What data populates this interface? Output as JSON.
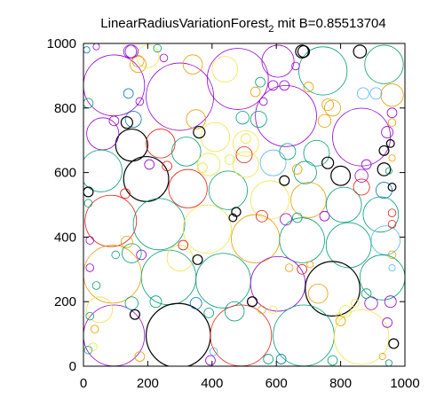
{
  "chart_data": {
    "type": "scatter",
    "title": "LinearRadiusVariationForest",
    "title_subscript": "2",
    "title_suffix": " mit B=0.85513704",
    "xlabel": "",
    "ylabel": "",
    "xlim": [
      0,
      1000
    ],
    "ylim": [
      0,
      1000
    ],
    "xticks": [
      "0",
      "200",
      "400",
      "600",
      "800",
      "1000"
    ],
    "yticks": [
      "0",
      "200",
      "400",
      "600",
      "800",
      "1000"
    ],
    "grid": false,
    "legend": "none",
    "colors": {
      "purple": "#9400d3",
      "teal": "#009e73",
      "blue": "#56b4e9",
      "orange": "#e69f00",
      "yellow": "#f0e442",
      "darkblue": "#0072b2",
      "red": "#e51e10",
      "black": "#000000"
    },
    "circles": [
      {
        "x": 95,
        "y": 870,
        "r": 95,
        "color": "purple"
      },
      {
        "x": 300,
        "y": 835,
        "r": 105,
        "color": "purple"
      },
      {
        "x": 480,
        "y": 890,
        "r": 95,
        "color": "purple"
      },
      {
        "x": 630,
        "y": 775,
        "r": 95,
        "color": "purple"
      },
      {
        "x": 745,
        "y": 915,
        "r": 75,
        "color": "teal"
      },
      {
        "x": 865,
        "y": 710,
        "r": 90,
        "color": "purple"
      },
      {
        "x": 935,
        "y": 935,
        "r": 60,
        "color": "teal"
      },
      {
        "x": 605,
        "y": 945,
        "r": 50,
        "color": "purple"
      },
      {
        "x": 150,
        "y": 685,
        "r": 50,
        "color": "black"
      },
      {
        "x": 60,
        "y": 720,
        "r": 50,
        "color": "purple"
      },
      {
        "x": 240,
        "y": 690,
        "r": 45,
        "color": "red"
      },
      {
        "x": 320,
        "y": 665,
        "r": 45,
        "color": "teal"
      },
      {
        "x": 55,
        "y": 605,
        "r": 65,
        "color": "teal"
      },
      {
        "x": 195,
        "y": 580,
        "r": 70,
        "color": "black"
      },
      {
        "x": 325,
        "y": 550,
        "r": 60,
        "color": "red"
      },
      {
        "x": 450,
        "y": 545,
        "r": 60,
        "color": "teal"
      },
      {
        "x": 580,
        "y": 515,
        "r": 60,
        "color": "yellow"
      },
      {
        "x": 700,
        "y": 515,
        "r": 55,
        "color": "orange"
      },
      {
        "x": 810,
        "y": 500,
        "r": 55,
        "color": "teal"
      },
      {
        "x": 925,
        "y": 470,
        "r": 55,
        "color": "teal"
      },
      {
        "x": 85,
        "y": 450,
        "r": 80,
        "color": "red"
      },
      {
        "x": 235,
        "y": 440,
        "r": 80,
        "color": "teal"
      },
      {
        "x": 385,
        "y": 425,
        "r": 75,
        "color": "yellow"
      },
      {
        "x": 535,
        "y": 395,
        "r": 75,
        "color": "orange"
      },
      {
        "x": 680,
        "y": 390,
        "r": 70,
        "color": "teal"
      },
      {
        "x": 825,
        "y": 375,
        "r": 70,
        "color": "teal"
      },
      {
        "x": 940,
        "y": 390,
        "r": 45,
        "color": "blue"
      },
      {
        "x": 90,
        "y": 285,
        "r": 90,
        "color": "orange"
      },
      {
        "x": 265,
        "y": 275,
        "r": 85,
        "color": "teal"
      },
      {
        "x": 435,
        "y": 265,
        "r": 85,
        "color": "teal"
      },
      {
        "x": 605,
        "y": 255,
        "r": 85,
        "color": "purple"
      },
      {
        "x": 775,
        "y": 240,
        "r": 85,
        "color": "black"
      },
      {
        "x": 930,
        "y": 275,
        "r": 70,
        "color": "teal"
      },
      {
        "x": 95,
        "y": 95,
        "r": 95,
        "color": "purple"
      },
      {
        "x": 295,
        "y": 95,
        "r": 100,
        "color": "black"
      },
      {
        "x": 490,
        "y": 95,
        "r": 95,
        "color": "red"
      },
      {
        "x": 685,
        "y": 95,
        "r": 95,
        "color": "teal"
      },
      {
        "x": 865,
        "y": 90,
        "r": 85,
        "color": "yellow"
      },
      {
        "x": 410,
        "y": 710,
        "r": 45,
        "color": "yellow"
      },
      {
        "x": 505,
        "y": 690,
        "r": 40,
        "color": "yellow"
      },
      {
        "x": 725,
        "y": 660,
        "r": 40,
        "color": "teal"
      },
      {
        "x": 590,
        "y": 630,
        "r": 40,
        "color": "blue"
      },
      {
        "x": 690,
        "y": 600,
        "r": 35,
        "color": "teal"
      },
      {
        "x": 390,
        "y": 625,
        "r": 35,
        "color": "yellow"
      },
      {
        "x": 505,
        "y": 625,
        "r": 40,
        "color": "yellow"
      },
      {
        "x": 960,
        "y": 840,
        "r": 35,
        "color": "orange"
      },
      {
        "x": 440,
        "y": 920,
        "r": 40,
        "color": "yellow"
      },
      {
        "x": 200,
        "y": 960,
        "r": 35,
        "color": "yellow"
      },
      {
        "x": 50,
        "y": 175,
        "r": 40,
        "color": "yellow"
      },
      {
        "x": 300,
        "y": 335,
        "r": 40,
        "color": "yellow"
      },
      {
        "x": 150,
        "y": 350,
        "r": 30,
        "color": "teal"
      },
      {
        "x": 350,
        "y": 765,
        "r": 30,
        "color": "orange"
      },
      {
        "x": 730,
        "y": 225,
        "r": 30,
        "color": "orange"
      },
      {
        "x": 470,
        "y": 170,
        "r": 30,
        "color": "teal"
      },
      {
        "x": 340,
        "y": 935,
        "r": 30,
        "color": "orange"
      },
      {
        "x": 935,
        "y": 545,
        "r": 25,
        "color": "darkblue"
      },
      {
        "x": 170,
        "y": 935,
        "r": 25,
        "color": "orange"
      },
      {
        "x": 775,
        "y": 800,
        "r": 25,
        "color": "orange"
      },
      {
        "x": 155,
        "y": 765,
        "r": 25,
        "color": "darkblue"
      },
      {
        "x": 680,
        "y": 975,
        "r": 20,
        "color": "black"
      },
      {
        "x": 860,
        "y": 975,
        "r": 20,
        "color": "black"
      },
      {
        "x": 145,
        "y": 975,
        "r": 20,
        "color": "purple"
      },
      {
        "x": 135,
        "y": 755,
        "r": 18,
        "color": "black"
      },
      {
        "x": 360,
        "y": 725,
        "r": 18,
        "color": "black"
      },
      {
        "x": 870,
        "y": 845,
        "r": 18,
        "color": "blue"
      },
      {
        "x": 910,
        "y": 845,
        "r": 18,
        "color": "blue"
      },
      {
        "x": 760,
        "y": 630,
        "r": 18,
        "color": "black"
      },
      {
        "x": 800,
        "y": 590,
        "r": 30,
        "color": "black"
      },
      {
        "x": 865,
        "y": 590,
        "r": 20,
        "color": "purple"
      },
      {
        "x": 935,
        "y": 610,
        "r": 20,
        "color": "black"
      },
      {
        "x": 865,
        "y": 555,
        "r": 25,
        "color": "red"
      },
      {
        "x": 945,
        "y": 725,
        "r": 18,
        "color": "purple"
      },
      {
        "x": 935,
        "y": 668,
        "r": 15,
        "color": "black"
      },
      {
        "x": 880,
        "y": 625,
        "r": 15,
        "color": "purple"
      },
      {
        "x": 960,
        "y": 785,
        "r": 15,
        "color": "purple"
      },
      {
        "x": 960,
        "y": 755,
        "r": 12,
        "color": "orange"
      },
      {
        "x": 955,
        "y": 690,
        "r": 12,
        "color": "black"
      },
      {
        "x": 960,
        "y": 555,
        "r": 12,
        "color": "black"
      },
      {
        "x": 960,
        "y": 475,
        "r": 12,
        "color": "red"
      },
      {
        "x": 960,
        "y": 440,
        "r": 12,
        "color": "red"
      },
      {
        "x": 960,
        "y": 345,
        "r": 12,
        "color": "orange"
      },
      {
        "x": 955,
        "y": 200,
        "r": 18,
        "color": "purple"
      },
      {
        "x": 945,
        "y": 135,
        "r": 15,
        "color": "purple"
      },
      {
        "x": 965,
        "y": 70,
        "r": 15,
        "color": "black"
      },
      {
        "x": 895,
        "y": 195,
        "r": 20,
        "color": "purple"
      },
      {
        "x": 880,
        "y": 225,
        "r": 15,
        "color": "teal"
      },
      {
        "x": 815,
        "y": 170,
        "r": 18,
        "color": "yellow"
      },
      {
        "x": 800,
        "y": 140,
        "r": 15,
        "color": "orange"
      },
      {
        "x": 680,
        "y": 300,
        "r": 15,
        "color": "red"
      },
      {
        "x": 705,
        "y": 315,
        "r": 10,
        "color": "orange"
      },
      {
        "x": 640,
        "y": 305,
        "r": 12,
        "color": "orange"
      },
      {
        "x": 630,
        "y": 455,
        "r": 18,
        "color": "purple"
      },
      {
        "x": 665,
        "y": 460,
        "r": 15,
        "color": "teal"
      },
      {
        "x": 750,
        "y": 465,
        "r": 15,
        "color": "purple"
      },
      {
        "x": 475,
        "y": 478,
        "r": 14,
        "color": "black"
      },
      {
        "x": 465,
        "y": 460,
        "r": 12,
        "color": "black"
      },
      {
        "x": 555,
        "y": 465,
        "r": 18,
        "color": "red"
      },
      {
        "x": 625,
        "y": 575,
        "r": 15,
        "color": "black"
      },
      {
        "x": 310,
        "y": 375,
        "r": 15,
        "color": "red"
      },
      {
        "x": 355,
        "y": 330,
        "r": 15,
        "color": "black"
      },
      {
        "x": 180,
        "y": 345,
        "r": 15,
        "color": "purple"
      },
      {
        "x": 135,
        "y": 385,
        "r": 18,
        "color": "orange"
      },
      {
        "x": 150,
        "y": 195,
        "r": 20,
        "color": "teal"
      },
      {
        "x": 160,
        "y": 160,
        "r": 15,
        "color": "black"
      },
      {
        "x": 225,
        "y": 200,
        "r": 18,
        "color": "teal"
      },
      {
        "x": 350,
        "y": 195,
        "r": 18,
        "color": "darkblue"
      },
      {
        "x": 390,
        "y": 165,
        "r": 15,
        "color": "teal"
      },
      {
        "x": 525,
        "y": 200,
        "r": 15,
        "color": "black"
      },
      {
        "x": 555,
        "y": 175,
        "r": 12,
        "color": "orange"
      },
      {
        "x": 590,
        "y": 175,
        "r": 12,
        "color": "yellow"
      },
      {
        "x": 575,
        "y": 22,
        "r": 15,
        "color": "teal"
      },
      {
        "x": 615,
        "y": 22,
        "r": 15,
        "color": "darkblue"
      },
      {
        "x": 775,
        "y": 18,
        "r": 15,
        "color": "teal"
      },
      {
        "x": 395,
        "y": 18,
        "r": 15,
        "color": "purple"
      },
      {
        "x": 405,
        "y": 45,
        "r": 12,
        "color": "blue"
      },
      {
        "x": 175,
        "y": 30,
        "r": 15,
        "color": "orange"
      },
      {
        "x": 15,
        "y": 50,
        "r": 12,
        "color": "teal"
      },
      {
        "x": 20,
        "y": 305,
        "r": 12,
        "color": "purple"
      },
      {
        "x": 40,
        "y": 250,
        "r": 12,
        "color": "teal"
      },
      {
        "x": 15,
        "y": 540,
        "r": 15,
        "color": "black"
      },
      {
        "x": 15,
        "y": 505,
        "r": 12,
        "color": "teal"
      },
      {
        "x": 15,
        "y": 815,
        "r": 15,
        "color": "teal"
      },
      {
        "x": 10,
        "y": 980,
        "r": 10,
        "color": "darkblue"
      },
      {
        "x": 40,
        "y": 990,
        "r": 10,
        "color": "purple"
      },
      {
        "x": 140,
        "y": 845,
        "r": 15,
        "color": "darkblue"
      },
      {
        "x": 175,
        "y": 820,
        "r": 12,
        "color": "purple"
      },
      {
        "x": 170,
        "y": 945,
        "r": 18,
        "color": "orange"
      },
      {
        "x": 150,
        "y": 975,
        "r": 20,
        "color": "purple"
      },
      {
        "x": 230,
        "y": 985,
        "r": 12,
        "color": "teal"
      },
      {
        "x": 250,
        "y": 955,
        "r": 12,
        "color": "purple"
      },
      {
        "x": 205,
        "y": 625,
        "r": 15,
        "color": "purple"
      },
      {
        "x": 260,
        "y": 620,
        "r": 15,
        "color": "red"
      },
      {
        "x": 370,
        "y": 615,
        "r": 15,
        "color": "yellow"
      },
      {
        "x": 550,
        "y": 880,
        "r": 15,
        "color": "teal"
      },
      {
        "x": 535,
        "y": 850,
        "r": 15,
        "color": "orange"
      },
      {
        "x": 560,
        "y": 820,
        "r": 12,
        "color": "purple"
      },
      {
        "x": 590,
        "y": 870,
        "r": 15,
        "color": "purple"
      },
      {
        "x": 625,
        "y": 870,
        "r": 15,
        "color": "purple"
      },
      {
        "x": 660,
        "y": 930,
        "r": 12,
        "color": "purple"
      },
      {
        "x": 685,
        "y": 975,
        "r": 18,
        "color": "black"
      },
      {
        "x": 750,
        "y": 760,
        "r": 20,
        "color": "orange"
      },
      {
        "x": 545,
        "y": 765,
        "r": 25,
        "color": "teal"
      },
      {
        "x": 495,
        "y": 770,
        "r": 20,
        "color": "teal"
      },
      {
        "x": 505,
        "y": 705,
        "r": 15,
        "color": "yellow"
      },
      {
        "x": 500,
        "y": 655,
        "r": 25,
        "color": "red"
      },
      {
        "x": 635,
        "y": 665,
        "r": 25,
        "color": "teal"
      },
      {
        "x": 665,
        "y": 610,
        "r": 15,
        "color": "orange"
      },
      {
        "x": 455,
        "y": 640,
        "r": 15,
        "color": "yellow"
      },
      {
        "x": 700,
        "y": 865,
        "r": 15,
        "color": "orange"
      },
      {
        "x": 760,
        "y": 810,
        "r": 18,
        "color": "orange"
      },
      {
        "x": 95,
        "y": 760,
        "r": 15,
        "color": "purple"
      },
      {
        "x": 130,
        "y": 535,
        "r": 15,
        "color": "red"
      },
      {
        "x": 100,
        "y": 345,
        "r": 12,
        "color": "teal"
      },
      {
        "x": 20,
        "y": 390,
        "r": 12,
        "color": "purple"
      },
      {
        "x": 20,
        "y": 155,
        "r": 12,
        "color": "teal"
      },
      {
        "x": 35,
        "y": 115,
        "r": 12,
        "color": "orange"
      },
      {
        "x": 30,
        "y": 60,
        "r": 12,
        "color": "yellow"
      },
      {
        "x": 950,
        "y": 10,
        "r": 10,
        "color": "teal"
      },
      {
        "x": 930,
        "y": 30,
        "r": 10,
        "color": "orange"
      },
      {
        "x": 795,
        "y": 155,
        "r": 10,
        "color": "yellow"
      },
      {
        "x": 845,
        "y": 195,
        "r": 12,
        "color": "yellow"
      },
      {
        "x": 960,
        "y": 305,
        "r": 10,
        "color": "blue"
      },
      {
        "x": 950,
        "y": 605,
        "r": 10,
        "color": "teal"
      },
      {
        "x": 960,
        "y": 645,
        "r": 10,
        "color": "orange"
      }
    ]
  }
}
